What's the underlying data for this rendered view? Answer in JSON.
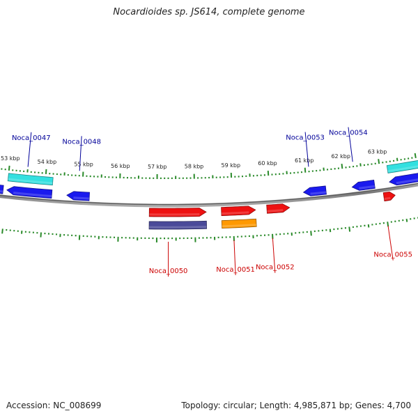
{
  "title": "Nocardioides sp. JS614, complete genome",
  "footer": {
    "accession": "Accession: NC_008699",
    "stats": "Topology: circular; Length: 4,985,871 bp; Genes: 4,700"
  },
  "colors": {
    "forward_label": "#cc0000",
    "reverse_label": "#000099",
    "tick": "#2a8a2a",
    "backbone": "#888888"
  },
  "scale": {
    "unit": "kbp",
    "major_ticks_kbp": [
      53,
      54,
      55,
      56,
      57,
      58,
      59,
      60,
      61,
      62,
      63
    ],
    "labels": [
      "53 kbp",
      "54 kbp",
      "55 kbp",
      "56 kbp",
      "57 kbp",
      "58 kbp",
      "59 kbp",
      "60 kbp",
      "61 kbp",
      "62 kbp",
      "63 kbp"
    ]
  },
  "features": [
    {
      "track": "reverse",
      "type": "gene",
      "color": "#1a1aee",
      "start_kbp": 52.5,
      "end_kbp": 52.9
    },
    {
      "track": "reverse",
      "type": "gene",
      "color": "#1a1aee",
      "start_kbp": 53.0,
      "end_kbp": 54.2
    },
    {
      "track": "reverse",
      "type": "rna",
      "color": "#33e0e0",
      "start_kbp": 53.0,
      "end_kbp": 54.2
    },
    {
      "track": "reverse",
      "type": "gene",
      "color": "#1a1aee",
      "start_kbp": 54.6,
      "end_kbp": 55.2
    },
    {
      "track": "forward",
      "type": "gene",
      "color": "#ee1111",
      "start_kbp": 56.8,
      "end_kbp": 58.3
    },
    {
      "track": "forward",
      "type": "region",
      "color": "#4a4a99",
      "start_kbp": 56.8,
      "end_kbp": 58.3
    },
    {
      "track": "forward",
      "type": "gene",
      "color": "#ee1111",
      "start_kbp": 58.7,
      "end_kbp": 59.6
    },
    {
      "track": "forward",
      "type": "region",
      "color": "#ff9900",
      "start_kbp": 58.7,
      "end_kbp": 59.6
    },
    {
      "track": "forward",
      "type": "gene",
      "color": "#ee1111",
      "start_kbp": 59.9,
      "end_kbp": 60.5
    },
    {
      "track": "reverse",
      "type": "gene",
      "color": "#1a1aee",
      "start_kbp": 60.9,
      "end_kbp": 61.5
    },
    {
      "track": "reverse",
      "type": "gene",
      "color": "#1a1aee",
      "start_kbp": 62.2,
      "end_kbp": 62.8
    },
    {
      "track": "forward",
      "type": "gene",
      "color": "#ee1111",
      "start_kbp": 63.0,
      "end_kbp": 63.3
    },
    {
      "track": "reverse",
      "type": "gene",
      "color": "#1a1aee",
      "start_kbp": 63.2,
      "end_kbp": 64.2
    },
    {
      "track": "reverse",
      "type": "rna",
      "color": "#33e0e0",
      "start_kbp": 63.2,
      "end_kbp": 64.2
    }
  ],
  "gene_labels": [
    {
      "name": "Noca_0047",
      "strand": "reverse",
      "pos_kbp": 53.5
    },
    {
      "name": "Noca_0048",
      "strand": "reverse",
      "pos_kbp": 54.9
    },
    {
      "name": "Noca_0050",
      "strand": "forward",
      "pos_kbp": 57.3
    },
    {
      "name": "Noca_0051",
      "strand": "forward",
      "pos_kbp": 59.0
    },
    {
      "name": "Noca_0052",
      "strand": "forward",
      "pos_kbp": 60.0
    },
    {
      "name": "Noca_0053",
      "strand": "reverse",
      "pos_kbp": 61.1
    },
    {
      "name": "Noca_0054",
      "strand": "reverse",
      "pos_kbp": 62.3
    },
    {
      "name": "Noca_0055",
      "strand": "forward",
      "pos_kbp": 63.0
    }
  ]
}
